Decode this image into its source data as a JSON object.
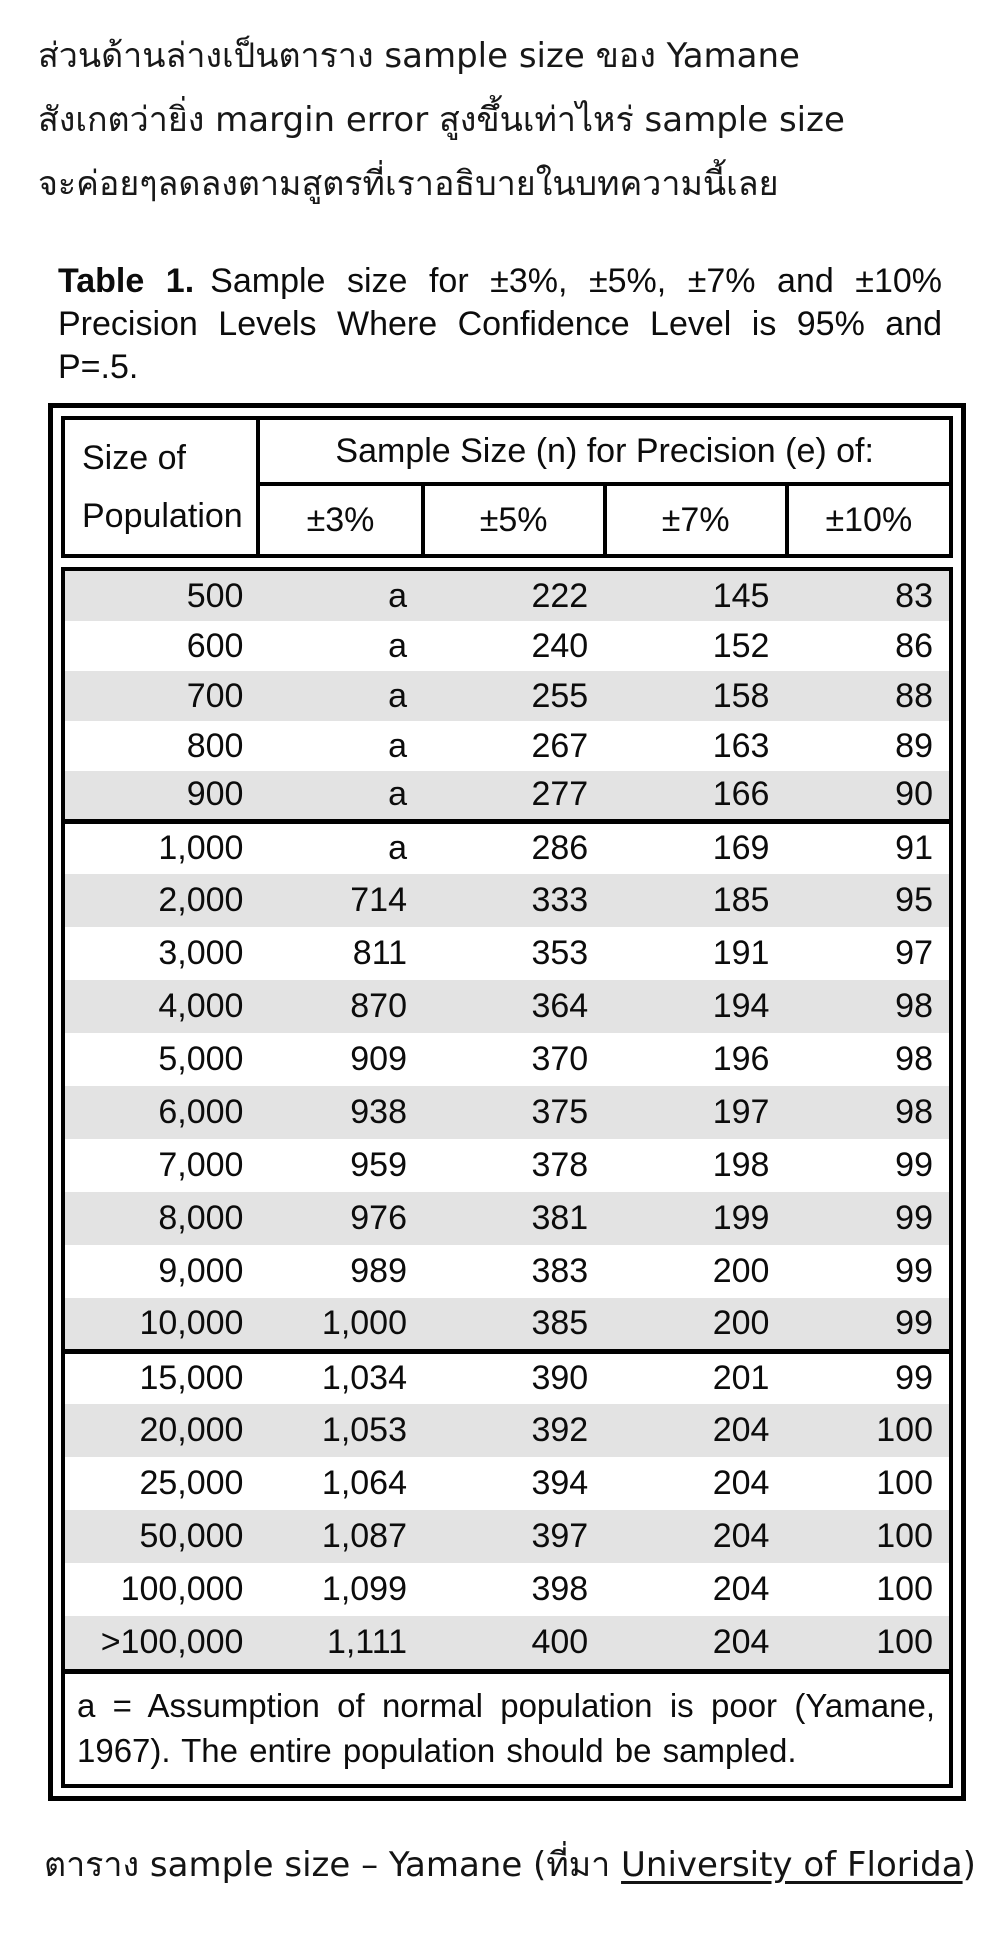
{
  "intro": {
    "lines": [
      "ส่วนด้านล่างเป็นตาราง sample size ของ Yamane",
      "สังเกตว่ายิ่ง margin error สูงขึ้นเท่าไหร่ sample size",
      "จะค่อยๆลดลงตามสูตรที่เราอธิบายในบทความนี้เลย"
    ]
  },
  "table": {
    "title": {
      "label": "Table 1.",
      "text": "Sample size for ±3%, ±5%, ±7% and ±10% Precision Levels Where Confidence Level is 95% and P=.5."
    },
    "header": {
      "row_header_lines": [
        "Size of",
        "Population"
      ],
      "group_label": "Sample Size (n) for Precision (e) of:",
      "precision_cols": [
        "±3%",
        "±5%",
        "±7%",
        "±10%"
      ]
    },
    "groups": [
      {
        "stripe_start": "gray",
        "rows": [
          [
            "500",
            "a",
            "222",
            "145",
            "83"
          ],
          [
            "600",
            "a",
            "240",
            "152",
            "86"
          ],
          [
            "700",
            "a",
            "255",
            "158",
            "88"
          ],
          [
            "800",
            "a",
            "267",
            "163",
            "89"
          ],
          [
            "900",
            "a",
            "277",
            "166",
            "90"
          ]
        ]
      },
      {
        "stripe_start": "white",
        "rows": [
          [
            "1,000",
            "a",
            "286",
            "169",
            "91"
          ],
          [
            "2,000",
            "714",
            "333",
            "185",
            "95"
          ],
          [
            "3,000",
            "811",
            "353",
            "191",
            "97"
          ],
          [
            "4,000",
            "870",
            "364",
            "194",
            "98"
          ],
          [
            "5,000",
            "909",
            "370",
            "196",
            "98"
          ],
          [
            "6,000",
            "938",
            "375",
            "197",
            "98"
          ],
          [
            "7,000",
            "959",
            "378",
            "198",
            "99"
          ],
          [
            "8,000",
            "976",
            "381",
            "199",
            "99"
          ],
          [
            "9,000",
            "989",
            "383",
            "200",
            "99"
          ],
          [
            "10,000",
            "1,000",
            "385",
            "200",
            "99"
          ]
        ]
      },
      {
        "stripe_start": "white",
        "rows": [
          [
            "15,000",
            "1,034",
            "390",
            "201",
            "99"
          ],
          [
            "20,000",
            "1,053",
            "392",
            "204",
            "100"
          ],
          [
            "25,000",
            "1,064",
            "394",
            "204",
            "100"
          ],
          [
            "50,000",
            "1,087",
            "397",
            "204",
            "100"
          ],
          [
            "100,000",
            "1,099",
            "398",
            "204",
            "100"
          ],
          [
            ">100,000",
            "1,111",
            "400",
            "204",
            "100"
          ]
        ]
      }
    ],
    "footnote": "a = Assumption of normal population is poor (Yamane, 1967).  The entire population should be sampled."
  },
  "caption": {
    "prefix": "ตาราง sample size – Yamane (ที่มา ",
    "link": "University of Florida",
    "suffix": ")"
  },
  "colors": {
    "stripe": "#e3e3e3",
    "border": "#000000",
    "text": "#0c0c0c",
    "background": "#ffffff"
  }
}
